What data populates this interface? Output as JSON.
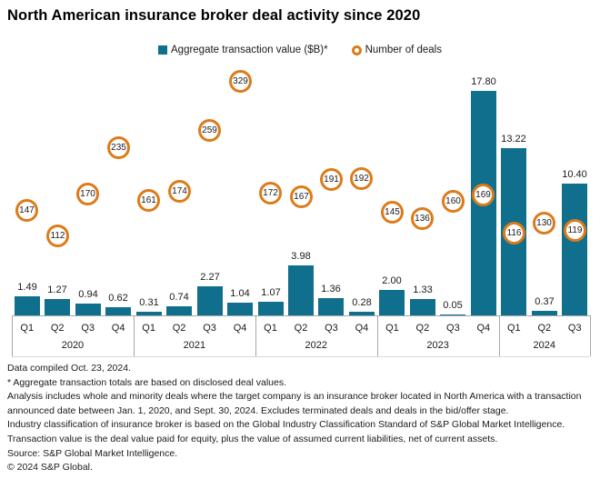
{
  "title": "North American insurance broker deal activity since 2020",
  "legend": {
    "bars_label": "Aggregate transaction value ($B)*",
    "deals_label": "Number of deals"
  },
  "colors": {
    "bar": "#0F6F8C",
    "deal_ring": "#DD7B1A",
    "axis_line": "#A8A8A8",
    "axis_line_light": "#D9D9D9",
    "text": "#1A1A1A"
  },
  "chart_data": {
    "type": "bar",
    "title": "North American insurance broker deal activity since 2020",
    "legend_position": "top",
    "grid": false,
    "categories": [
      "Q1",
      "Q2",
      "Q3",
      "Q4",
      "Q1",
      "Q2",
      "Q3",
      "Q4",
      "Q1",
      "Q2",
      "Q3",
      "Q4",
      "Q1",
      "Q2",
      "Q3",
      "Q4",
      "Q1",
      "Q2",
      "Q3"
    ],
    "year_groups": [
      {
        "label": "2020",
        "quarters": 4
      },
      {
        "label": "2021",
        "quarters": 4
      },
      {
        "label": "2022",
        "quarters": 4
      },
      {
        "label": "2023",
        "quarters": 4
      },
      {
        "label": "2024",
        "quarters": 3
      }
    ],
    "series": [
      {
        "name": "Aggregate transaction value ($B)*",
        "type": "bar",
        "color": "#0F6F8C",
        "values": [
          1.49,
          1.27,
          0.94,
          0.62,
          0.31,
          0.74,
          2.27,
          1.04,
          1.07,
          3.98,
          1.36,
          0.28,
          2.0,
          1.33,
          0.05,
          17.8,
          13.22,
          0.37,
          10.4
        ],
        "label_decimals": 2,
        "ylim": [
          0,
          20.65
        ]
      },
      {
        "name": "Number of deals",
        "type": "point",
        "color": "#DD7B1A",
        "values": [
          147,
          112,
          170,
          235,
          161,
          174,
          259,
          329,
          172,
          167,
          191,
          192,
          145,
          136,
          160,
          169,
          116,
          130,
          119
        ],
        "ylim": [
          0,
          366
        ]
      }
    ]
  },
  "footer": {
    "notes": [
      "Data compiled Oct. 23, 2024.",
      "* Aggregate transaction totals are based on disclosed deal values.",
      "Analysis includes whole and minority deals where the target company is an insurance broker located in North America with a transaction announced date between Jan. 1, 2020, and Sept. 30, 2024. Excludes terminated deals and deals in the bid/offer stage.",
      "Industry classification of insurance broker is based on the Global Industry Classification Standard of S&P Global Market Intelligence.",
      "Transaction value is the deal value paid for equity, plus the value of assumed current liabilities, net of current assets.",
      "Source: S&P Global Market Intelligence.",
      "© 2024 S&P Global."
    ]
  }
}
